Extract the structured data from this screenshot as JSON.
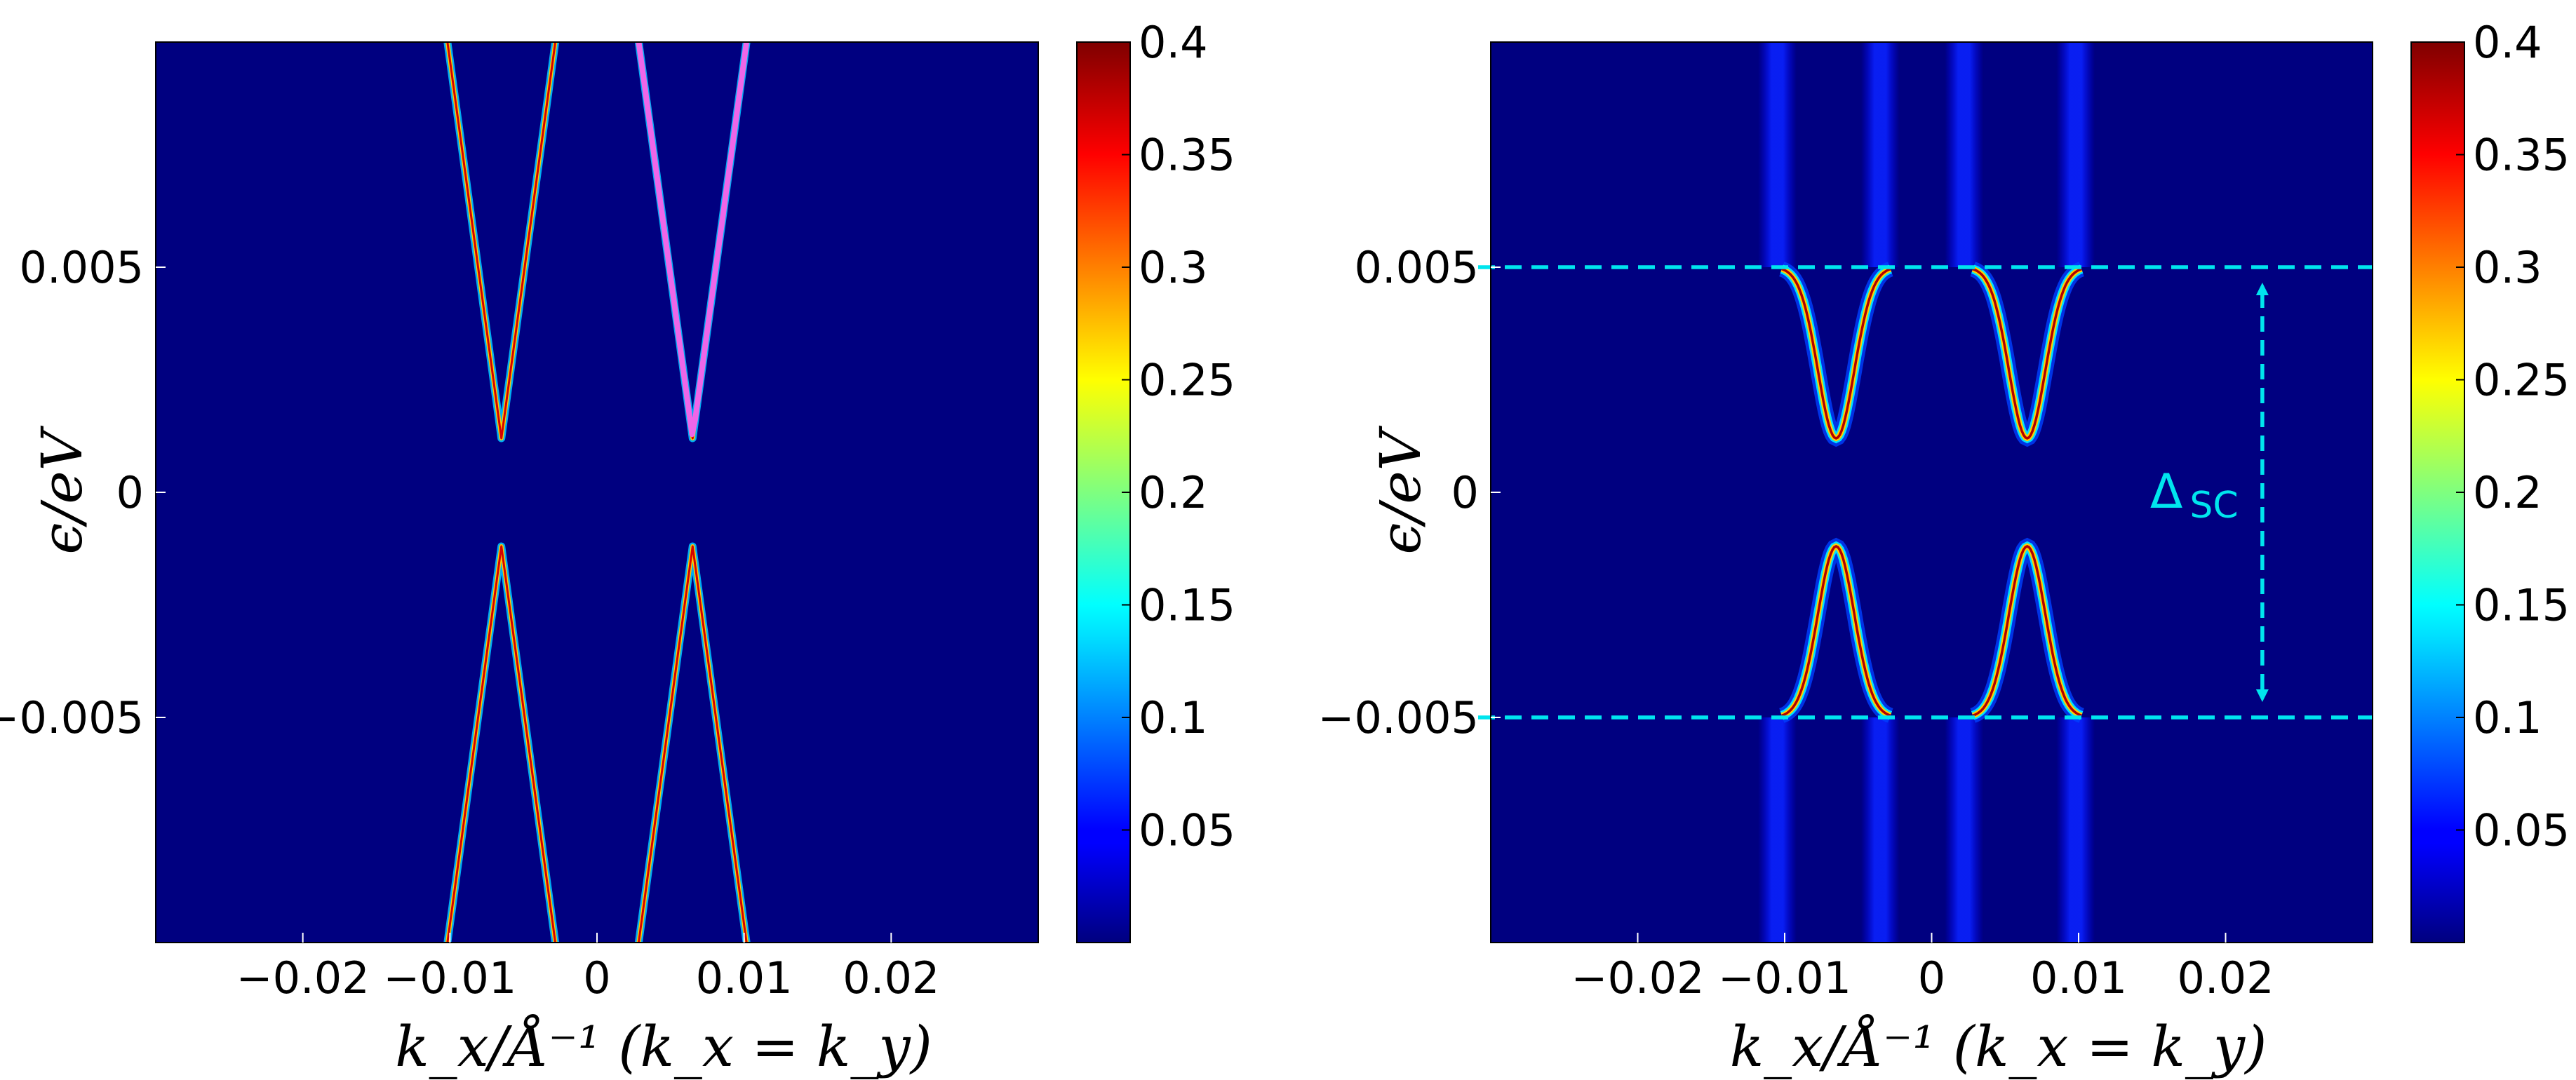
{
  "chart_data": [
    {
      "type": "heatmap",
      "title": "",
      "xlabel": "k_x/Å⁻¹   (k_x = k_y)",
      "ylabel": "ϵ/eV",
      "xlim": [
        -0.03,
        0.03
      ],
      "ylim": [
        -0.01,
        0.01
      ],
      "x_ticks": [
        -0.02,
        -0.01,
        0,
        0.01,
        0.02
      ],
      "x_tick_labels": [
        "−0.02",
        "−0.01",
        "0",
        "0.01",
        "0.02"
      ],
      "y_ticks": [
        0.005,
        0,
        -0.005
      ],
      "y_tick_labels": [
        "0.005",
        "0",
        "−0.005"
      ],
      "colorbar": {
        "min": 0,
        "max": 0.4,
        "ticks": [
          0.05,
          0.1,
          0.15,
          0.2,
          0.25,
          0.3,
          0.35,
          0.4
        ],
        "tick_labels": [
          "0.05",
          "0.1",
          "0.15",
          "0.2",
          "0.25",
          "0.3",
          "0.35",
          "0.4"
        ]
      },
      "bands": {
        "centers": [
          -0.0065,
          0.0065
        ],
        "gap_edge": 0.0012,
        "slope": 2.4
      },
      "overlay": {
        "color": "#ee66e8",
        "center": 0.0065,
        "k_range": [
          0.002,
          0.0105
        ]
      }
    },
    {
      "type": "heatmap",
      "title": "",
      "xlabel": "k_x/Å⁻¹   (k_x = k_y)",
      "ylabel": "ϵ/eV",
      "xlim": [
        -0.03,
        0.03
      ],
      "ylim": [
        -0.01,
        0.01
      ],
      "x_ticks": [
        -0.02,
        -0.01,
        0,
        0.01,
        0.02
      ],
      "x_tick_labels": [
        "−0.02",
        "−0.01",
        "0",
        "0.01",
        "0.02"
      ],
      "y_ticks": [
        0.005,
        0,
        -0.005
      ],
      "y_tick_labels": [
        "0.005",
        "0",
        "−0.005"
      ],
      "colorbar": {
        "min": 0,
        "max": 0.4,
        "ticks": [
          0.05,
          0.1,
          0.15,
          0.2,
          0.25,
          0.3,
          0.35,
          0.4
        ],
        "tick_labels": [
          "0.05",
          "0.1",
          "0.15",
          "0.2",
          "0.25",
          "0.3",
          "0.35",
          "0.4"
        ]
      },
      "bands": {
        "centers": [
          -0.0065,
          0.0065
        ],
        "gap_edge": 0.0012,
        "band_top": 0.005,
        "width_k": 0.0037
      },
      "annotation": {
        "label": "Δ",
        "subscript": "SC",
        "color": "#00e5ee",
        "lines_at": [
          0.005,
          -0.005
        ],
        "arrow_x": 0.0225
      }
    }
  ]
}
